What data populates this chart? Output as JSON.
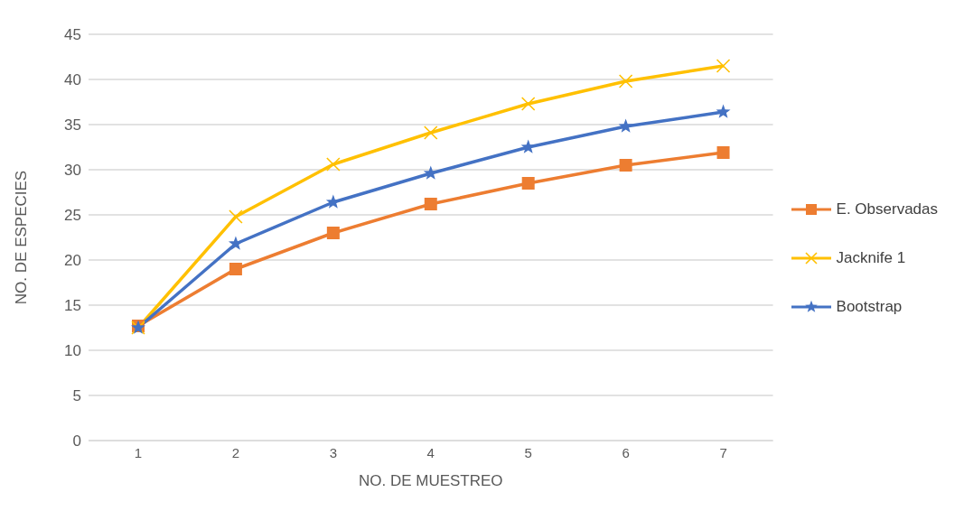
{
  "chart_data": {
    "type": "line",
    "xlabel": "NO. DE MUESTREO",
    "ylabel": "NO. DE ESPECIES",
    "categories": [
      "1",
      "2",
      "3",
      "4",
      "5",
      "6",
      "7"
    ],
    "series": [
      {
        "name": "E. Observadas",
        "color": "#ed7d31",
        "marker": "square",
        "values": [
          12.7,
          19.0,
          23.0,
          26.2,
          28.5,
          30.5,
          31.9
        ]
      },
      {
        "name": "Jacknife 1",
        "color": "#ffc000",
        "marker": "cross",
        "values": [
          12.5,
          24.8,
          30.6,
          34.1,
          37.3,
          39.8,
          41.5
        ]
      },
      {
        "name": "Bootstrap",
        "color": "#4472c4",
        "marker": "star",
        "values": [
          12.5,
          21.8,
          26.4,
          29.6,
          32.5,
          34.8,
          36.4
        ]
      }
    ],
    "ylim": [
      0,
      45
    ],
    "yticks": [
      0,
      5,
      10,
      15,
      20,
      25,
      30,
      35,
      40,
      45
    ],
    "grid": "y",
    "legend": "right",
    "line_style": "solid"
  }
}
